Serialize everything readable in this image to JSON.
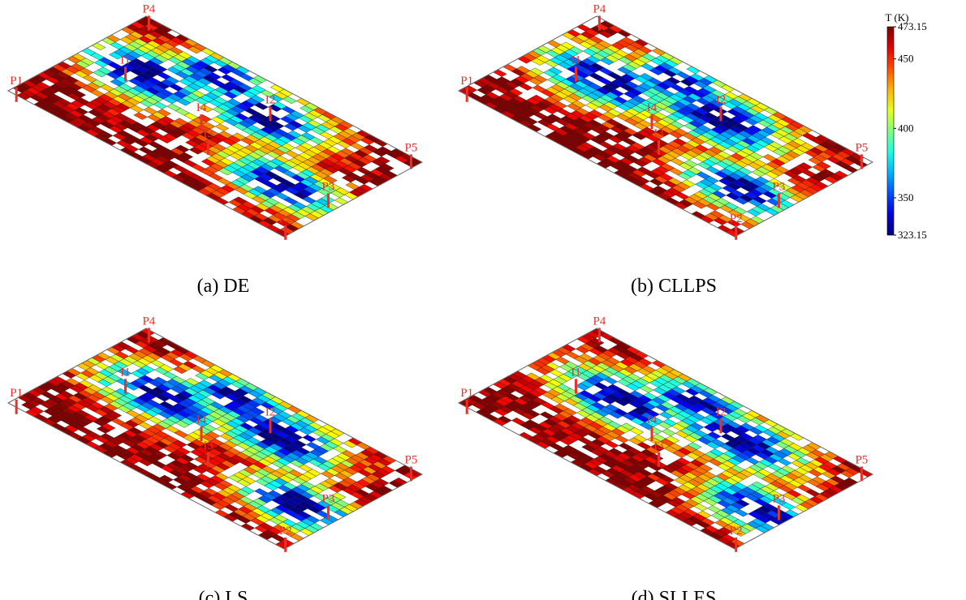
{
  "panels": [
    {
      "caption": "(a) DE",
      "wells": [
        "P1",
        "P2",
        "P3",
        "P4",
        "P5",
        "I1",
        "I2",
        "I3",
        "I4"
      ]
    },
    {
      "caption": "(b) CLLPS",
      "wells": [
        "P1",
        "P2",
        "P3",
        "P4",
        "P5",
        "I1",
        "I2",
        "I3",
        "I4"
      ]
    },
    {
      "caption": "(c) LS",
      "wells": [
        "P1",
        "P2",
        "P3",
        "P4",
        "P5",
        "I1",
        "I2",
        "I3",
        "I4"
      ]
    },
    {
      "caption": "(d) SLLES",
      "wells": [
        "P1",
        "P2",
        "P3",
        "P4",
        "P5",
        "I1",
        "I2",
        "I3",
        "I4"
      ]
    }
  ],
  "colorbar": {
    "title": "T (K)",
    "range": [
      323.15,
      473.15
    ],
    "ticks": [
      473.15,
      450,
      400,
      350,
      323.15
    ]
  }
}
